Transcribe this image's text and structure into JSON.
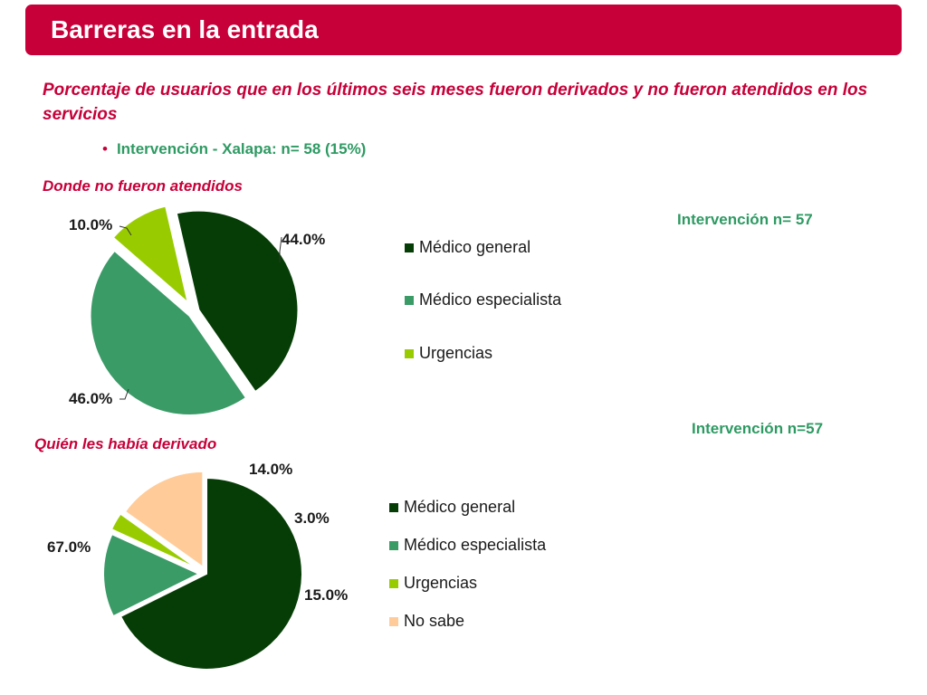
{
  "header": {
    "title": "Barreras en la entrada"
  },
  "subtitle": "Porcentaje de usuarios que en los últimos seis meses fueron derivados y no fueron atendidos en los servicios",
  "bullet": {
    "bullet_char": "•",
    "text": "Intervención - Xalapa:  n= 58 (15%)"
  },
  "colors": {
    "accent": "#c70039",
    "green_text": "#2e9a63",
    "medico_general": "#063d06",
    "medico_especialista": "#3a9b67",
    "urgencias": "#99cc00",
    "no_sabe": "#ffcc99"
  },
  "chart_data": [
    {
      "type": "pie",
      "title": "Donde no fueron atendidos",
      "n_label": "Intervención n= 57",
      "categories": [
        "Médico general",
        "Médico especialista",
        "Urgencias"
      ],
      "values": [
        44.0,
        46.0,
        10.0
      ],
      "data_labels": [
        "44.0%",
        "46.0%",
        "10.0%"
      ],
      "legend": [
        "Médico general",
        "Médico especialista",
        "Urgencias"
      ],
      "legend_position": "right"
    },
    {
      "type": "pie",
      "title": "Quién les había derivado",
      "n_label": "Intervención n=57",
      "categories": [
        "Médico general",
        "Médico especialista",
        "Urgencias",
        "No sabe"
      ],
      "values": [
        67.0,
        14.0,
        3.0,
        15.0
      ],
      "data_labels": [
        "67.0%",
        "14.0%",
        "3.0%",
        "15.0%"
      ],
      "legend": [
        "Médico general",
        "Médico especialista",
        "Urgencias",
        "No sabe"
      ],
      "legend_position": "right"
    }
  ]
}
